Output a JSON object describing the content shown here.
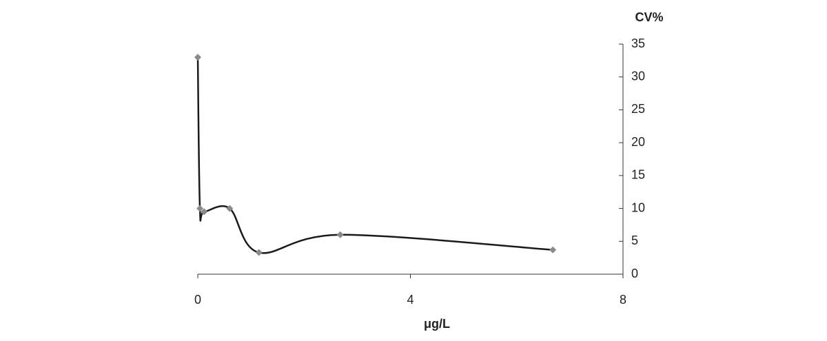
{
  "chart_data": {
    "type": "line",
    "x": [
      0,
      0.04,
      0.12,
      0.6,
      1.15,
      2.68,
      6.68
    ],
    "values": [
      33,
      10,
      9.5,
      10,
      3.3,
      6,
      3.7
    ],
    "color": "#1a1a1a",
    "marker_color": "#8a8a8a",
    "smooth": true,
    "xlabel": "μg/L",
    "ylabel": "CV%",
    "xlim": [
      0,
      8
    ],
    "xticks": [
      0,
      4,
      8
    ],
    "ylim": [
      0,
      35
    ],
    "yticks": [
      0,
      5,
      10,
      15,
      20,
      25,
      30,
      35
    ],
    "y_axis_side": "right",
    "grid": false
  }
}
